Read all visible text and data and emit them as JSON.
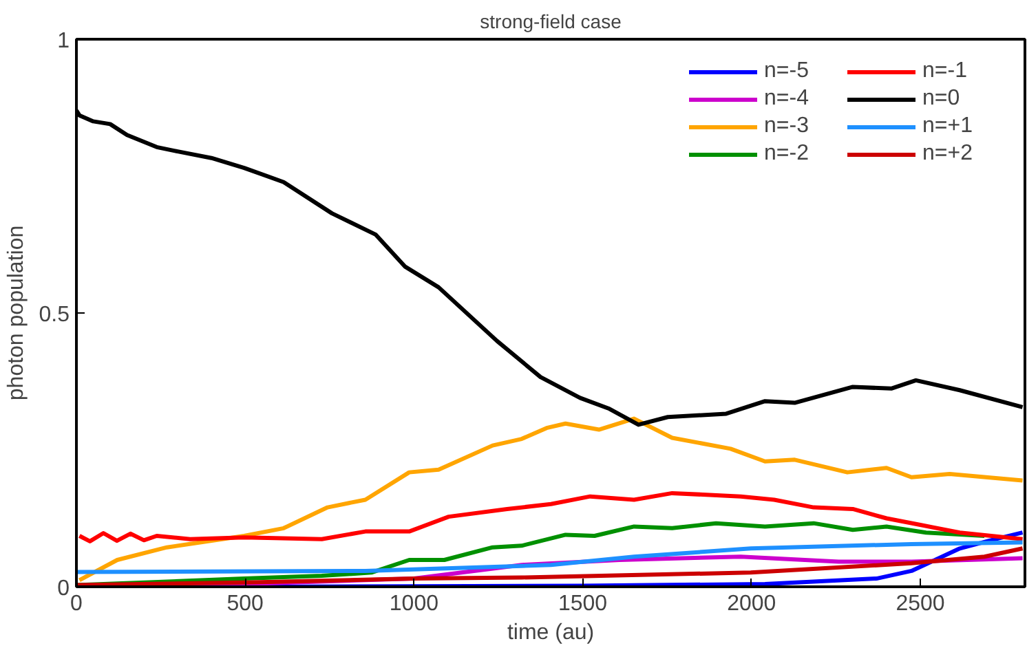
{
  "chart_data": {
    "type": "line",
    "title": "strong-field case",
    "xlabel": "time (au)",
    "ylabel": "photon population",
    "xlim": [
      0,
      2810
    ],
    "ylim": [
      0,
      1
    ],
    "xticks": [
      0,
      500,
      1000,
      1500,
      2000,
      2500
    ],
    "yticks": [
      0,
      0.5,
      1
    ],
    "grid": false,
    "legend": "top right",
    "marker": "none",
    "line_style": "solid",
    "series": [
      {
        "name": "n=-5",
        "color": "#0000ff",
        "x": [
          0,
          500,
          1000,
          1500,
          2040,
          2370,
          2474,
          2617,
          2703,
          2803
        ],
        "values": [
          0.0,
          0.0,
          0.001,
          0.002,
          0.005,
          0.015,
          0.029,
          0.07,
          0.084,
          0.099
        ]
      },
      {
        "name": "n=-4",
        "color": "#cc00cc",
        "x": [
          0,
          500,
          1000,
          1319,
          1609,
          1968,
          2258,
          2474,
          2803
        ],
        "values": [
          0.0,
          0.005,
          0.015,
          0.04,
          0.049,
          0.055,
          0.046,
          0.046,
          0.052
        ]
      },
      {
        "name": "n=-3",
        "color": "#ffa500",
        "x": [
          9,
          121,
          268,
          497,
          614,
          744,
          856,
          986,
          1073,
          1233,
          1319,
          1393,
          1449,
          1548,
          1652,
          1765,
          1938,
          2040,
          2128,
          2284,
          2400,
          2474,
          2587,
          2803
        ],
        "values": [
          0.012,
          0.049,
          0.072,
          0.093,
          0.107,
          0.145,
          0.159,
          0.209,
          0.214,
          0.258,
          0.27,
          0.29,
          0.298,
          0.287,
          0.307,
          0.272,
          0.252,
          0.229,
          0.232,
          0.209,
          0.217,
          0.2,
          0.206,
          0.194
        ]
      },
      {
        "name": "n=-2",
        "color": "#009000",
        "x": [
          0,
          497,
          727,
          874,
          986,
          1090,
          1233,
          1319,
          1449,
          1535,
          1652,
          1765,
          1895,
          2040,
          2184,
          2300,
          2400,
          2517,
          2690
        ],
        "values": [
          0.003,
          0.015,
          0.02,
          0.026,
          0.049,
          0.049,
          0.072,
          0.075,
          0.095,
          0.093,
          0.11,
          0.107,
          0.116,
          0.11,
          0.116,
          0.104,
          0.11,
          0.099,
          0.093
        ]
      },
      {
        "name": "n=-1",
        "color": "#ff0000",
        "x": [
          9,
          40,
          80,
          120,
          160,
          200,
          238,
          337,
          497,
          727,
          856,
          986,
          1103,
          1276,
          1406,
          1522,
          1652,
          1765,
          1968,
          2067,
          2184,
          2300,
          2400,
          2500,
          2617,
          2803
        ],
        "values": [
          0.093,
          0.083,
          0.098,
          0.084,
          0.097,
          0.085,
          0.093,
          0.087,
          0.09,
          0.087,
          0.101,
          0.101,
          0.128,
          0.142,
          0.151,
          0.165,
          0.159,
          0.171,
          0.165,
          0.159,
          0.145,
          0.142,
          0.125,
          0.113,
          0.099,
          0.087
        ]
      },
      {
        "name": "n=0",
        "color": "#000000",
        "x": [
          0,
          9,
          50,
          100,
          150,
          238,
          300,
          400,
          497,
          614,
          757,
          887,
          973,
          1073,
          1246,
          1375,
          1492,
          1579,
          1665,
          1752,
          1925,
          2040,
          2128,
          2300,
          2414,
          2487,
          2617,
          2803
        ],
        "values": [
          0.87,
          0.861,
          0.85,
          0.845,
          0.825,
          0.803,
          0.795,
          0.783,
          0.765,
          0.739,
          0.682,
          0.643,
          0.585,
          0.547,
          0.449,
          0.383,
          0.345,
          0.325,
          0.296,
          0.31,
          0.316,
          0.339,
          0.336,
          0.365,
          0.362,
          0.377,
          0.359,
          0.328
        ]
      },
      {
        "name": "n=+1",
        "color": "#1e90ff",
        "x": [
          0,
          856,
          1319,
          1406,
          1652,
          1998,
          2474,
          2803
        ],
        "values": [
          0.027,
          0.029,
          0.038,
          0.04,
          0.055,
          0.07,
          0.078,
          0.081
        ]
      },
      {
        "name": "n=+2",
        "color": "#cc0000",
        "x": [
          0,
          500,
          1000,
          1319,
          1998,
          2474,
          2690,
          2803
        ],
        "values": [
          0.003,
          0.008,
          0.015,
          0.017,
          0.026,
          0.043,
          0.055,
          0.07
        ]
      }
    ]
  }
}
